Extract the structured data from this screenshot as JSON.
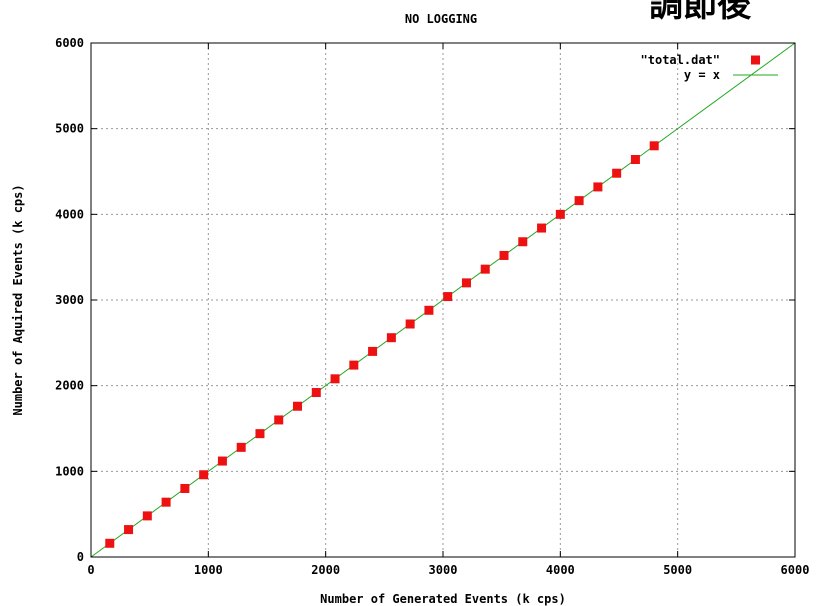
{
  "overlay_text": "調節後",
  "chart_data": {
    "type": "scatter",
    "title": "NO LOGGING",
    "xlabel": "Number of Generated Events (k cps)",
    "ylabel": "Number of Aquired Events (k cps)",
    "xlim": [
      0,
      6000
    ],
    "ylim": [
      0,
      6000
    ],
    "x_ticks": [
      "0",
      "1000",
      "2000",
      "3000",
      "4000",
      "5000",
      "6000"
    ],
    "y_ticks": [
      "0",
      "1000",
      "2000",
      "3000",
      "4000",
      "5000",
      "6000"
    ],
    "grid": true,
    "legend_position": "top-right",
    "series": [
      {
        "name": "\"total.dat\"",
        "kind": "points",
        "color": "#ee1111",
        "x": [
          160,
          320,
          480,
          640,
          800,
          960,
          1120,
          1280,
          1440,
          1600,
          1760,
          1920,
          2080,
          2240,
          2400,
          2560,
          2720,
          2880,
          3040,
          3200,
          3360,
          3520,
          3680,
          3840,
          4000,
          4160,
          4320,
          4480,
          4640,
          4800
        ],
        "y": [
          160,
          320,
          480,
          640,
          800,
          960,
          1120,
          1280,
          1440,
          1600,
          1760,
          1920,
          2080,
          2240,
          2400,
          2560,
          2720,
          2880,
          3040,
          3200,
          3360,
          3520,
          3680,
          3840,
          4000,
          4160,
          4320,
          4480,
          4640,
          4800
        ]
      },
      {
        "name": "y = x",
        "kind": "line",
        "color": "#22aa22",
        "x": [
          0,
          6000
        ],
        "y": [
          0,
          6000
        ]
      }
    ]
  }
}
